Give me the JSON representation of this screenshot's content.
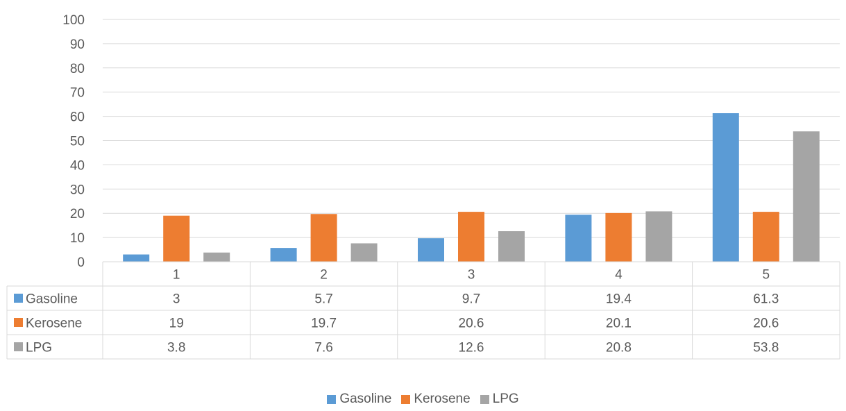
{
  "chart_data": {
    "type": "bar",
    "categories": [
      "1",
      "2",
      "3",
      "4",
      "5"
    ],
    "series": [
      {
        "name": "Gasoline",
        "color": "#5b9bd5",
        "values": [
          3,
          5.7,
          9.7,
          19.4,
          61.3
        ]
      },
      {
        "name": "Kerosene",
        "color": "#ed7d31",
        "values": [
          19,
          19.7,
          20.6,
          20.1,
          20.6
        ]
      },
      {
        "name": "LPG",
        "color": "#a5a5a5",
        "values": [
          3.8,
          7.6,
          12.6,
          20.8,
          53.8
        ]
      }
    ],
    "ylim": [
      0,
      100
    ],
    "yticks": [
      0,
      10,
      20,
      30,
      40,
      50,
      60,
      70,
      80,
      90,
      100
    ],
    "table_labels": [
      "3",
      "5.7",
      "9.7",
      "19.4",
      "61.3",
      "19",
      "19.7",
      "20.6",
      "20.1",
      "20.6",
      "3.8",
      "7.6",
      "12.6",
      "20.8",
      "53.8"
    ],
    "grid": true,
    "data_table": true,
    "legend_position": "bottom"
  }
}
